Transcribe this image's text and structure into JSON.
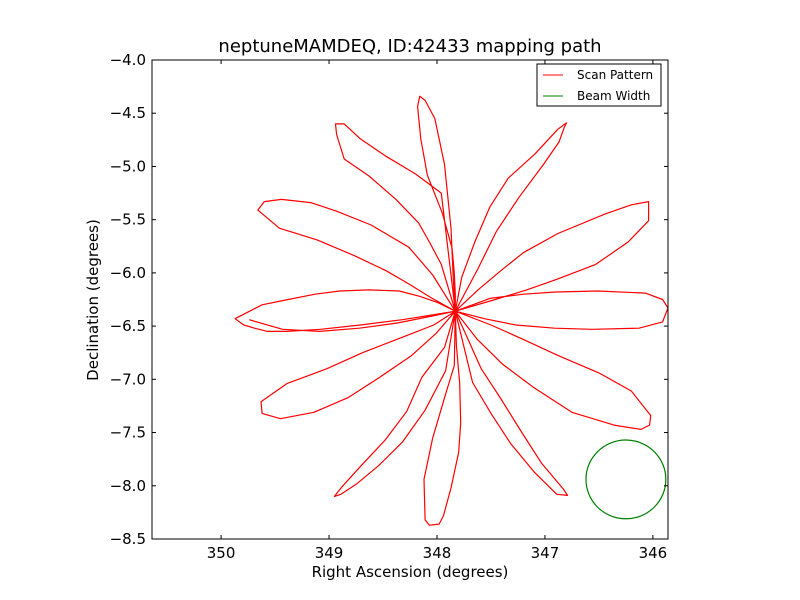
{
  "chart_data": {
    "type": "line",
    "title": "neptuneMAMDEQ, ID:42433 mapping path",
    "xlabel": "Right Ascension (degrees)",
    "ylabel": "Declination (degrees)",
    "xlim": [
      350.64,
      345.86
    ],
    "ylim": [
      -8.5,
      -4.0
    ],
    "x_inverted": true,
    "xticks": [
      350,
      349,
      348,
      347,
      346
    ],
    "xtick_labels": [
      "350",
      "349",
      "348",
      "347",
      "346"
    ],
    "yticks": [
      -4.0,
      -4.5,
      -5.0,
      -5.5,
      -6.0,
      -6.5,
      -7.0,
      -7.5,
      -8.0,
      -8.5
    ],
    "ytick_labels": [
      "−4.0",
      "−4.5",
      "−5.0",
      "−5.5",
      "−6.0",
      "−6.5",
      "−7.0",
      "−7.5",
      "−8.0",
      "−8.5"
    ],
    "grid": false,
    "legend_position": "top-right",
    "center": [
      347.83,
      -6.36
    ],
    "series": [
      {
        "name": "Scan Pattern",
        "color": "#ff0000",
        "x": [
          347.83,
          347.99,
          348.16,
          348.35,
          348.63,
          348.9,
          349.13,
          349.43,
          349.62,
          349.87,
          349.79,
          349.69,
          349.57,
          349.39,
          349.08,
          348.71,
          348.32,
          348.01,
          347.83,
          348.06,
          348.25,
          348.47,
          348.76,
          349.11,
          349.46,
          349.66,
          349.6,
          349.44,
          349.17,
          348.93,
          348.61,
          348.26,
          348.04,
          347.83,
          347.89,
          347.96,
          348.07,
          348.17,
          348.38,
          348.63,
          348.86,
          348.93,
          348.94,
          348.86,
          348.71,
          348.48,
          348.2,
          347.96,
          347.83,
          347.83,
          347.84,
          347.86,
          347.95,
          348.09,
          348.15,
          348.18,
          348.16,
          348.11,
          348.02,
          347.93,
          347.87,
          347.85,
          347.83,
          347.77,
          347.65,
          347.51,
          347.34,
          347.09,
          346.88,
          346.8,
          346.82,
          346.87,
          347.02,
          347.24,
          347.45,
          347.62,
          347.83,
          347.61,
          347.41,
          347.2,
          346.88,
          346.45,
          346.2,
          346.04,
          346.04,
          346.23,
          346.53,
          346.89,
          347.17,
          347.46,
          347.83,
          347.51,
          347.2,
          346.9,
          346.51,
          346.07,
          345.91,
          345.86,
          345.91,
          346.13,
          346.56,
          346.91,
          347.27,
          347.56,
          347.83,
          347.5,
          347.19,
          346.87,
          346.5,
          346.2,
          346.02,
          346.03,
          346.11,
          346.36,
          346.75,
          347.1,
          347.39,
          347.63,
          347.83,
          347.71,
          347.59,
          347.41,
          347.22,
          347.03,
          346.83,
          346.79,
          346.89,
          347.1,
          347.32,
          347.5,
          347.67,
          347.83,
          347.82,
          347.79,
          347.78,
          347.8,
          347.87,
          347.94,
          347.98,
          348.07,
          348.11,
          348.12,
          348.04,
          347.92,
          347.84,
          347.83,
          347.93,
          348.14,
          348.28,
          348.48,
          348.72,
          348.88,
          348.95,
          348.89,
          348.74,
          348.54,
          348.32,
          348.11,
          347.92,
          347.83,
          348.01,
          348.24,
          348.53,
          348.82,
          349.14,
          349.45,
          349.62,
          349.63,
          349.39,
          349.02,
          348.69,
          348.31,
          348.03,
          347.83,
          348.02,
          348.36,
          348.72,
          349.09,
          349.43,
          349.74
        ],
        "y": [
          -6.36,
          -6.28,
          -6.22,
          -6.17,
          -6.16,
          -6.17,
          -6.2,
          -6.26,
          -6.3,
          -6.43,
          -6.49,
          -6.52,
          -6.55,
          -6.55,
          -6.53,
          -6.49,
          -6.44,
          -6.39,
          -6.36,
          -6.23,
          -6.11,
          -5.98,
          -5.84,
          -5.69,
          -5.58,
          -5.41,
          -5.33,
          -5.31,
          -5.34,
          -5.42,
          -5.55,
          -5.76,
          -6.02,
          -6.36,
          -6.16,
          -5.92,
          -5.71,
          -5.53,
          -5.31,
          -5.09,
          -4.93,
          -4.7,
          -4.6,
          -4.6,
          -4.74,
          -4.9,
          -5.07,
          -5.25,
          -6.36,
          -6.2,
          -6.0,
          -5.77,
          -5.44,
          -5.08,
          -4.74,
          -4.44,
          -4.34,
          -4.38,
          -4.55,
          -4.98,
          -5.58,
          -6.04,
          -6.36,
          -6.04,
          -5.71,
          -5.38,
          -5.11,
          -4.88,
          -4.65,
          -4.59,
          -4.63,
          -4.77,
          -4.99,
          -5.29,
          -5.61,
          -5.96,
          -6.36,
          -6.15,
          -5.98,
          -5.81,
          -5.63,
          -5.45,
          -5.36,
          -5.33,
          -5.51,
          -5.71,
          -5.92,
          -6.06,
          -6.16,
          -6.25,
          -6.36,
          -6.24,
          -6.2,
          -6.18,
          -6.17,
          -6.19,
          -6.25,
          -6.33,
          -6.46,
          -6.52,
          -6.53,
          -6.52,
          -6.49,
          -6.43,
          -6.36,
          -6.49,
          -6.63,
          -6.78,
          -6.94,
          -7.11,
          -7.34,
          -7.43,
          -7.47,
          -7.43,
          -7.31,
          -7.08,
          -6.86,
          -6.62,
          -6.36,
          -6.63,
          -6.9,
          -7.18,
          -7.49,
          -7.79,
          -8.03,
          -8.09,
          -8.08,
          -7.87,
          -7.6,
          -7.32,
          -7.03,
          -6.36,
          -6.68,
          -7.04,
          -7.41,
          -7.69,
          -8.02,
          -8.28,
          -8.36,
          -8.37,
          -8.32,
          -7.94,
          -7.55,
          -7.14,
          -6.87,
          -6.36,
          -6.7,
          -6.98,
          -7.3,
          -7.57,
          -7.83,
          -8.01,
          -8.1,
          -8.08,
          -7.98,
          -7.81,
          -7.59,
          -7.29,
          -6.92,
          -6.36,
          -6.57,
          -6.78,
          -6.98,
          -7.17,
          -7.31,
          -7.37,
          -7.32,
          -7.21,
          -7.04,
          -6.9,
          -6.75,
          -6.6,
          -6.49,
          -6.36,
          -6.4,
          -6.47,
          -6.52,
          -6.55,
          -6.53,
          -6.44
        ]
      },
      {
        "name": "Beam Width",
        "color": "#008000",
        "shape": "circle",
        "center": [
          346.25,
          -7.94
        ],
        "radius_deg": 0.37
      }
    ]
  }
}
